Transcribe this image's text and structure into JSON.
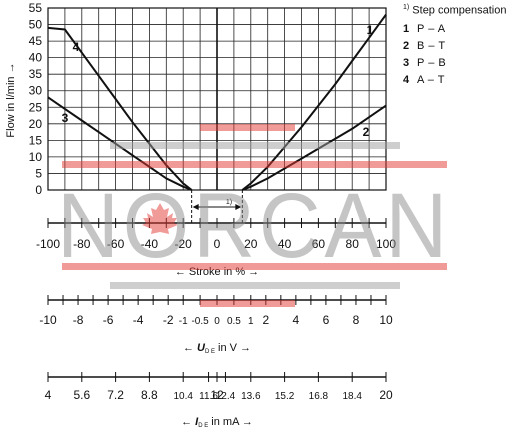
{
  "chart_data": {
    "type": "line",
    "ylabel": "Flow in l/min →",
    "ylim": [
      0,
      55
    ],
    "yticks": [
      0,
      5,
      10,
      15,
      20,
      25,
      30,
      35,
      40,
      45,
      50,
      55
    ],
    "xlim": [
      -100,
      100
    ],
    "x_grid": [
      -100,
      -90,
      -80,
      -70,
      -60,
      -50,
      -40,
      -30,
      -20,
      -10,
      0,
      10,
      20,
      30,
      40,
      50,
      60,
      70,
      80,
      90,
      100
    ],
    "deadband_label": "1)",
    "deadband": [
      -15,
      15
    ],
    "series": [
      {
        "name": "1",
        "label": "1",
        "points": [
          [
            15,
            0
          ],
          [
            20,
            2
          ],
          [
            30,
            7
          ],
          [
            40,
            13
          ],
          [
            50,
            19
          ],
          [
            60,
            25.5
          ],
          [
            70,
            32
          ],
          [
            80,
            39
          ],
          [
            90,
            46
          ],
          [
            100,
            53
          ]
        ]
      },
      {
        "name": "2",
        "label": "2",
        "points": [
          [
            15,
            0
          ],
          [
            20,
            1
          ],
          [
            30,
            3.5
          ],
          [
            40,
            6.5
          ],
          [
            50,
            9.5
          ],
          [
            60,
            12.5
          ],
          [
            70,
            15.5
          ],
          [
            80,
            18.5
          ],
          [
            90,
            22
          ],
          [
            100,
            25.5
          ]
        ]
      },
      {
        "name": "3",
        "label": "3",
        "points": [
          [
            -15,
            0
          ],
          [
            -20,
            1
          ],
          [
            -30,
            3.5
          ],
          [
            -40,
            7
          ],
          [
            -50,
            10.5
          ],
          [
            -60,
            14
          ],
          [
            -70,
            17.5
          ],
          [
            -80,
            21
          ],
          [
            -90,
            24.5
          ],
          [
            -100,
            28
          ]
        ]
      },
      {
        "name": "4",
        "label": "4",
        "points": [
          [
            -15,
            0
          ],
          [
            -20,
            2
          ],
          [
            -30,
            7.5
          ],
          [
            -40,
            14
          ],
          [
            -50,
            20.5
          ],
          [
            -60,
            27.5
          ],
          [
            -70,
            34.5
          ],
          [
            -80,
            41.5
          ],
          [
            -90,
            48.5
          ],
          [
            -100,
            49
          ]
        ]
      }
    ],
    "stroke_axis": {
      "ticks": [
        -100,
        -80,
        -60,
        -40,
        -20,
        0,
        20,
        40,
        60,
        80,
        100
      ],
      "label": "← Stroke in % →"
    },
    "voltage_axis": {
      "ticks": [
        {
          "v": -10,
          "t": "-10"
        },
        {
          "v": -8,
          "t": "-8"
        },
        {
          "v": -6,
          "t": "-6"
        },
        {
          "v": -4,
          "t": "-4"
        },
        {
          "v": -2,
          "t": "-2"
        },
        {
          "v": -1,
          "t": "-1"
        },
        {
          "v": -0.5,
          "t": "-0.5"
        },
        {
          "v": 0,
          "t": "0"
        },
        {
          "v": 0.5,
          "t": "0.5"
        },
        {
          "v": 1,
          "t": "1"
        },
        {
          "v": 2,
          "t": "2"
        },
        {
          "v": 4,
          "t": "4"
        },
        {
          "v": 6,
          "t": "6"
        },
        {
          "v": 8,
          "t": "8"
        },
        {
          "v": 10,
          "t": "10"
        }
      ],
      "label_prefix": "← ",
      "label_var": "U",
      "label_sub": "D E",
      "label_suffix": " in V →"
    },
    "current_axis": {
      "ticks": [
        "4",
        "5.6",
        "7.2",
        "8.8",
        "10.4",
        "11.6",
        "12",
        "12.4",
        "13.6",
        "15.2",
        "16.8",
        "18.4",
        "20"
      ],
      "label_prefix": "← ",
      "label_var": "I",
      "label_sub": "D E",
      "label_suffix": " in mA →"
    }
  },
  "legend": {
    "title_note": "1)",
    "title": "Step compensation",
    "items": [
      {
        "num": "1",
        "text": "P – A"
      },
      {
        "num": "2",
        "text": "B – T"
      },
      {
        "num": "3",
        "text": "P – B"
      },
      {
        "num": "4",
        "text": "A – T"
      }
    ]
  },
  "watermark": {
    "text": "NORCAN",
    "colors": {
      "text": "#8c8c8c",
      "red": "#e53935",
      "grey": "#9e9e9e"
    }
  }
}
